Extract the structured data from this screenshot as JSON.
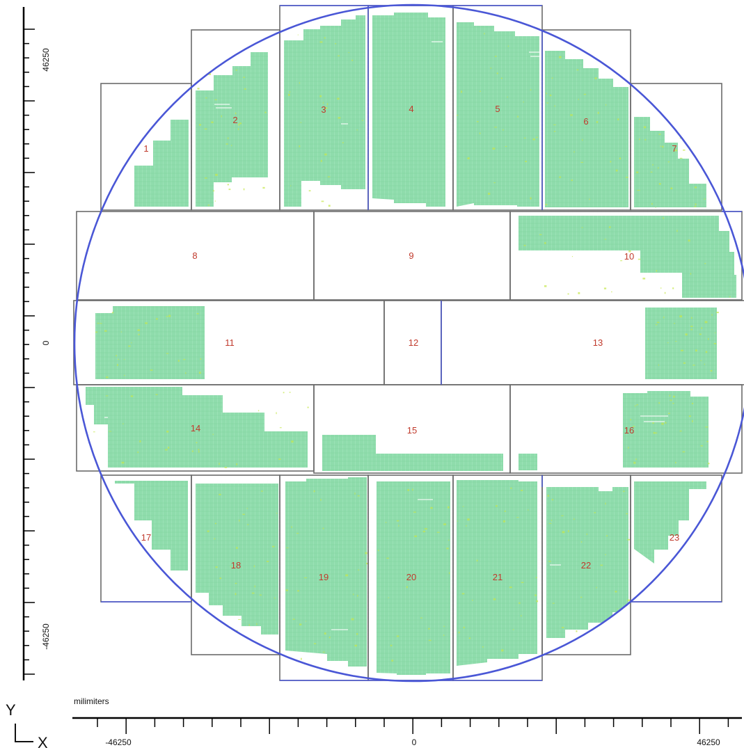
{
  "view": {
    "wafer_outline_color": "#4a57d6",
    "region_border_color": "#6b6b6b",
    "region_fill_color": "#8fdcac",
    "defect_color": "#c6e84a",
    "label_color": "#c0392b",
    "region_labels": [
      "1",
      "2",
      "3",
      "4",
      "5",
      "6",
      "7",
      "8",
      "9",
      "10",
      "11",
      "12",
      "13",
      "14",
      "15",
      "16",
      "17",
      "18",
      "19",
      "20",
      "21",
      "22",
      "23"
    ]
  },
  "y_axis": {
    "tick_labels": [
      "46250",
      "0",
      "-46250"
    ]
  },
  "x_axis": {
    "unit_label": "milimiters",
    "tick_labels": [
      "-46250",
      "0",
      "46250"
    ]
  },
  "origin_indicator": {
    "y_label": "Y",
    "x_label": "X"
  }
}
